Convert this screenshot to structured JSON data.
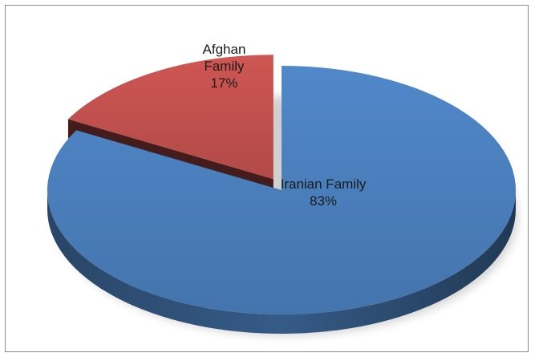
{
  "chart_data": {
    "type": "pie",
    "style": "3d-exploded",
    "title": "",
    "slices": [
      {
        "label_line1": "Iranian Family",
        "label_line2": "",
        "percent_label": "83%",
        "value": 83,
        "color": "#4a7ebb",
        "exploded": false
      },
      {
        "label_line1": "Afghan",
        "label_line2": "Family",
        "percent_label": "17%",
        "value": 17,
        "color": "#c0504d",
        "exploded": true
      }
    ],
    "legend": "none",
    "start_angle_deg": 0,
    "direction": "clockwise"
  }
}
